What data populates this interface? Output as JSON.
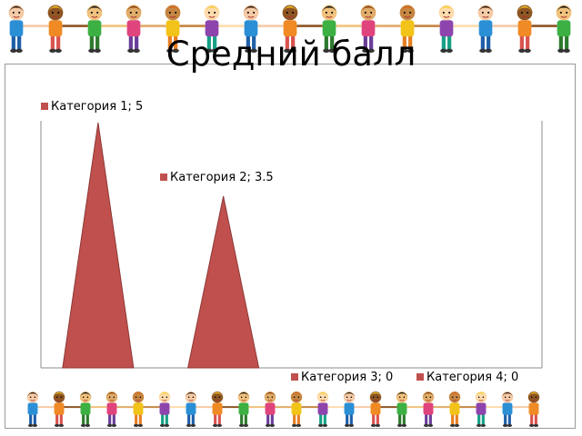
{
  "slide": {
    "title": "Средний балл",
    "decoration": "children holding hands border",
    "frame_color": "#9a9a9a"
  },
  "chart_data": {
    "type": "area",
    "subtype": "triangle-columns",
    "title": "Средний балл",
    "categories": [
      "Категория 1",
      "Категория 2",
      "Категория 3",
      "Категория 4"
    ],
    "values": [
      5,
      3.5,
      0,
      0
    ],
    "data_labels": [
      "Категория 1; 5",
      "Категория 2; 3.5",
      "Категория 3; 0",
      "Категория 4; 0"
    ],
    "ylim": [
      0,
      5
    ],
    "grid": false,
    "legend": "none",
    "bar_color": "#c0504d",
    "bar_edge_color": "#8c3836"
  }
}
